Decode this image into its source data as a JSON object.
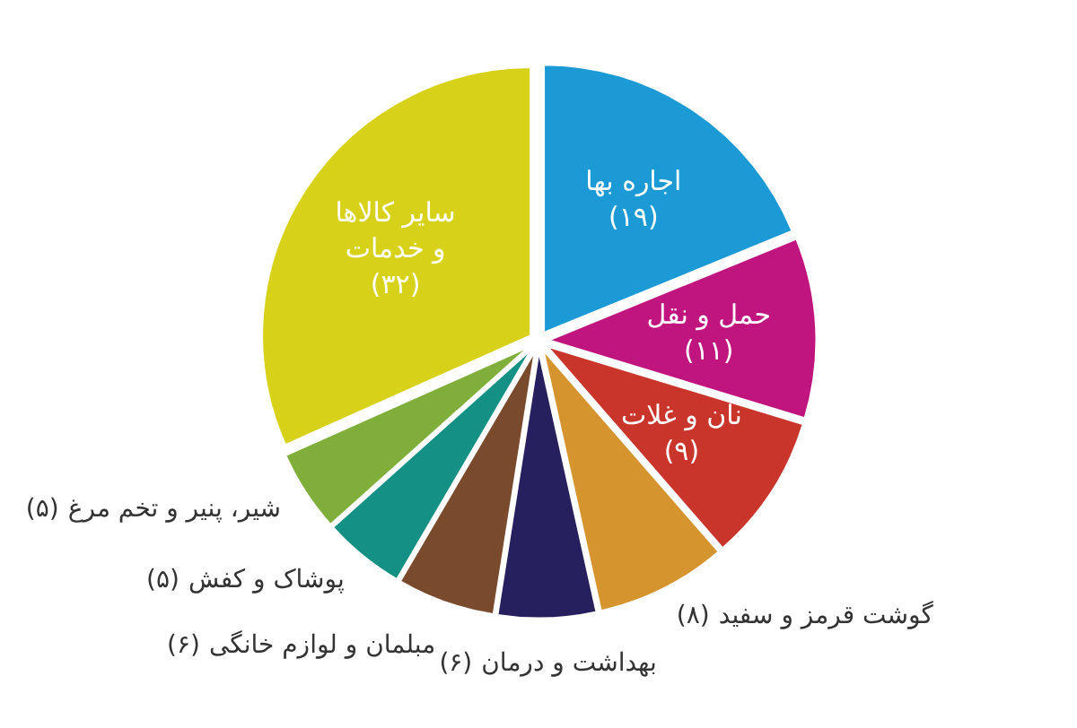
{
  "chart_data": {
    "type": "pie",
    "categories": [
      "اجاره بها",
      "حمل و نقل",
      "نان و غلات",
      "گوشت قرمز و سفید",
      "بهداشت و درمان",
      "مبلمان و لوازم خانگی",
      "پوشاک و کفش",
      "شیر، پنیر و تخم مرغ",
      "سایر کالاها و خدمات"
    ],
    "values": [
      19,
      11,
      9,
      8,
      6,
      6,
      5,
      5,
      32
    ],
    "value_labels": [
      "(۱۹)",
      "(۱۱)",
      "(۹)",
      "(۸)",
      "(۶)",
      "(۶)",
      "(۵)",
      "(۵)",
      "(۳۲)"
    ],
    "colors": [
      "#1b9ad6",
      "#c0157e",
      "#c9352b",
      "#d6942f",
      "#27205f",
      "#7a4a2c",
      "#149085",
      "#7faf3a",
      "#d8d11a"
    ]
  }
}
